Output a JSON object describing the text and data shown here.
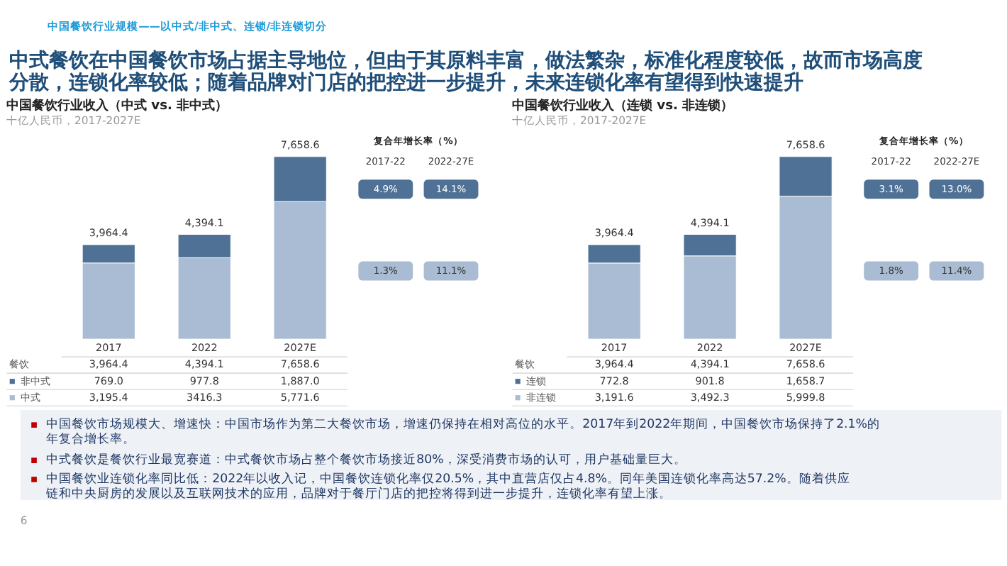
{
  "chart_data": [
    {
      "type": "other",
      "title": "中国餐饮行业规模——以中式/非中式、连锁/非连锁切分",
      "subtitle": "中式餐饮在中国餐饮市场占据主导地位，但由于其原料丰富，做法繁杂，标准化程度较低，故而市场高度分散，连锁化率较低；随着品牌对门店的把控进一步提升，未来连锁化率有望得到快速提升"
    },
    {
      "type": "bar",
      "stacked": true,
      "title": "中国餐饮行业收入（中式 vs. 非中式）",
      "subtitle": "十亿人民币，2017-2027E",
      "categories": [
        "2017",
        "2022",
        "2027E"
      ],
      "series": [
        {
          "name": "中式",
          "color": "#a9bcd3",
          "values": [
            3195.4,
            3416.3,
            5771.6
          ],
          "value_labels": [
            "3,195.4",
            "3416.3",
            "5,771.6"
          ]
        },
        {
          "name": "非中式",
          "color": "#4e7195",
          "values": [
            769.0,
            977.8,
            1887.0
          ],
          "value_labels": [
            "769.0",
            "977.8",
            "1,887.0"
          ]
        }
      ],
      "totals": [
        "3,964.4",
        "4,394.1",
        "7,658.6"
      ],
      "legend": "bottom left",
      "annotations": [
        "餐饮",
        "复合年增长率（%）",
        "2017-22",
        "2022-27E",
        "4.9%",
        "14.1%",
        "1.3%",
        "11.1%"
      ]
    },
    {
      "type": "bar",
      "stacked": true,
      "title": "中国餐饮行业收入（连锁 vs. 非连锁）",
      "subtitle": "十亿人民币，2017-2027E",
      "categories": [
        "2017",
        "2022",
        "2027E"
      ],
      "series": [
        {
          "name": "非连锁",
          "color": "#a9bcd3",
          "values": [
            3191.6,
            3492.3,
            5999.8
          ],
          "value_labels": [
            "3,191.6",
            "3,492.3",
            "5,999.8"
          ]
        },
        {
          "name": "连锁",
          "color": "#4e7195",
          "values": [
            772.8,
            901.8,
            1658.7
          ],
          "value_labels": [
            "772.8",
            "901.8",
            "1,658.7"
          ]
        }
      ],
      "totals": [
        "3,964.4",
        "4,394.1",
        "7,658.6"
      ],
      "legend": "bottom left",
      "annotations": [
        "餐饮",
        "复合年增长率（%）",
        "2017-22",
        "2022-27E",
        "3.1%",
        "13.0%",
        "1.8%",
        "11.4%"
      ]
    },
    {
      "type": "other",
      "annotations": [
        "中国餐饮市场规模大、增速快：中国市场作为第二大餐饮市场，增速仍保持在相对高位的水平。2017年到2022年期间，中国餐饮市场保持了2.1%的年复合增长率。",
        "中式餐饮是餐饮行业最宽赛道：中式餐饮市场占整个餐饮市场接近80%，深受消费市场的认可，用户基础量巨大。",
        "中国餐饮业连锁化率同比低：2022年以收入记，中国餐饮连锁化率仅20.5%，其中直营店仅占4.8%。同年美国连锁化率高达57.2%。随着供应链和中央厨房的发展以及互联网技术的应用，品牌对于餐厅门店的把控将得到进一步提升，连锁化率有望上涨。",
        "6"
      ]
    }
  ]
}
